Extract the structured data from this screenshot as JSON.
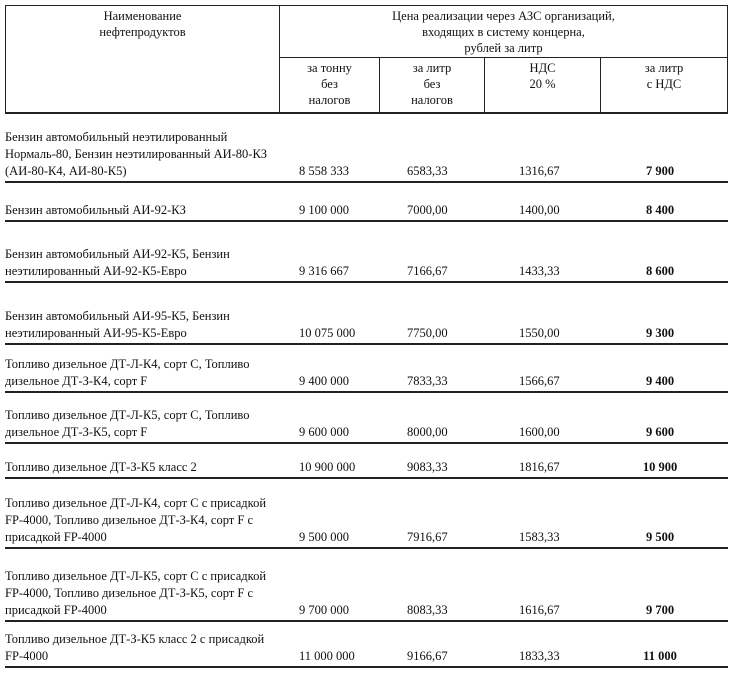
{
  "header": {
    "col_name": "Наименование\nнефтепродуктов",
    "col_price_group": "Цена реализации через АЗС организаций,\nвходящих в систему концерна,\nрублей за литр",
    "sub": [
      "за тонну\nбез\nналогов",
      "за литр\nбез\nналогов",
      "НДС\n20 %",
      "за литр\nс НДС"
    ]
  },
  "rows": [
    {
      "name": "Бензин автомобильный неэтилированный Нормаль-80, Бензин  неэтилированный АИ-80-КЗ (АИ-80-К4, АИ-80-К5)",
      "per_ton": "8 558 333",
      "per_liter": "6583,33",
      "vat": "1316,67",
      "per_liter_vat": "7 900"
    },
    {
      "name": "Бензин автомобильный АИ-92-КЗ",
      "per_ton": "9 100 000",
      "per_liter": "7000,00",
      "vat": "1400,00",
      "per_liter_vat": "8 400"
    },
    {
      "name": "Бензин автомобильный АИ-92-К5, Бензин неэтилированный АИ-92-К5-Евро",
      "per_ton": "9 316 667",
      "per_liter": "7166,67",
      "vat": "1433,33",
      "per_liter_vat": "8 600"
    },
    {
      "name": "Бензин автомобильный  АИ-95-К5, Бензин неэтилированный  АИ-95-К5-Евро",
      "per_ton": "10 075 000",
      "per_liter": "7750,00",
      "vat": "1550,00",
      "per_liter_vat": "9 300"
    },
    {
      "name": "Топливо дизельное ДТ-Л-К4, сорт С, Топливо дизельное ДТ-З-К4, сорт F",
      "per_ton": "9 400 000",
      "per_liter": "7833,33",
      "vat": "1566,67",
      "per_liter_vat": "9 400"
    },
    {
      "name": "Топливо дизельное ДТ-Л-К5, сорт С, Топливо дизельное ДТ-З-К5, сорт F",
      "per_ton": "9 600 000",
      "per_liter": "8000,00",
      "vat": "1600,00",
      "per_liter_vat": "9 600"
    },
    {
      "name": "Топливо дизельное ДТ-З-К5 класс 2",
      "per_ton": "10 900 000",
      "per_liter": "9083,33",
      "vat": "1816,67",
      "per_liter_vat": "10 900"
    },
    {
      "name": "Топливо дизельное ДТ-Л-К4, сорт С с присадкой FP-4000, Топливо дизельное ДТ-З-К4, сорт F с присадкой FP-4000",
      "per_ton": "9 500 000",
      "per_liter": "7916,67",
      "vat": "1583,33",
      "per_liter_vat": "9 500"
    },
    {
      "name": "Топливо дизельное ДТ-Л-К5, сорт С с присадкой FP-4000, Топливо дизельное ДТ-З-К5, сорт F с присадкой FP-4000",
      "per_ton": "9 700 000",
      "per_liter": "8083,33",
      "vat": "1616,67",
      "per_liter_vat": "9 700"
    },
    {
      "name": "Топливо дизельное ДТ-З-К5 класс 2 с присадкой FP-4000",
      "per_ton": "11 000 000",
      "per_liter": "9166,67",
      "vat": "1833,33",
      "per_liter_vat": "11 000"
    }
  ]
}
